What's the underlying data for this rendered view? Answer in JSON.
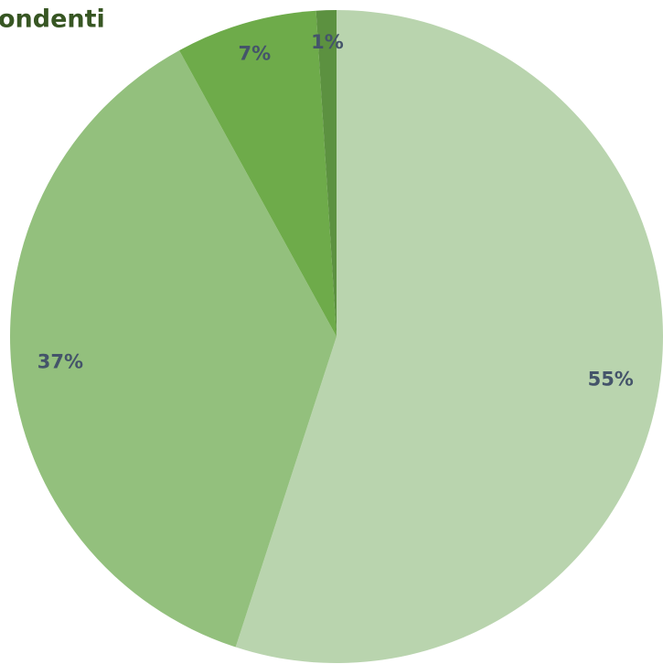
{
  "chart_data": {
    "type": "pie",
    "title": "ondenti",
    "categories": [
      null,
      null,
      null,
      null
    ],
    "values": [
      55,
      37,
      7,
      1
    ],
    "colors": [
      "#b9d4ae",
      "#93c07d",
      "#6eab4a",
      "#5c9140"
    ]
  }
}
